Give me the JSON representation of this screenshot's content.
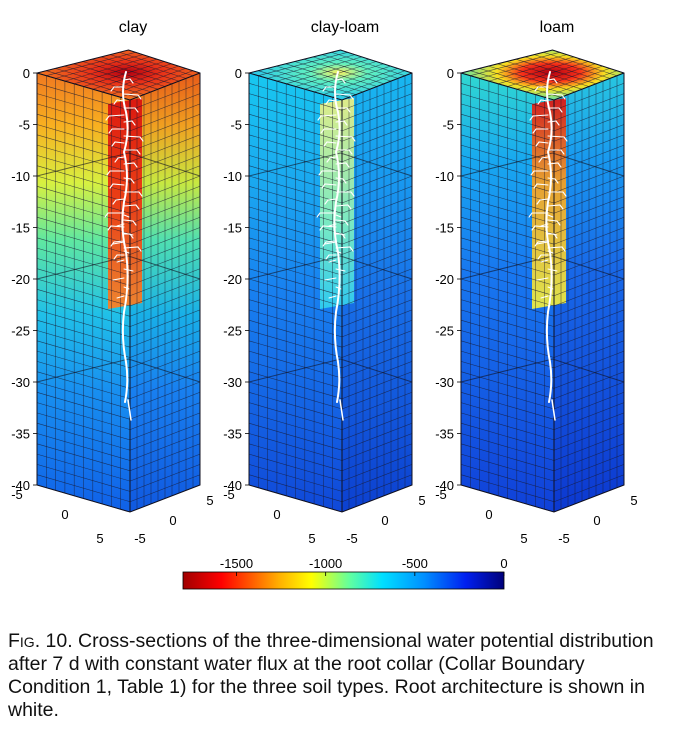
{
  "chart_data": {
    "type": "heatmap",
    "description_panels": [
      "clay",
      "clay-loam",
      "loam"
    ],
    "panels": [
      {
        "title": "clay"
      },
      {
        "title": "clay-loam"
      },
      {
        "title": "loam"
      }
    ],
    "z_axis": {
      "ticks": [
        "0",
        "-5",
        "-10",
        "-15",
        "-20",
        "-25",
        "-30",
        "-35",
        "-40"
      ],
      "range": [
        -40,
        0
      ]
    },
    "x_axis": {
      "ticks": [
        "-5",
        "0",
        "5"
      ]
    },
    "y_axis": {
      "ticks": [
        "5",
        "0",
        "-5"
      ]
    },
    "colorbar": {
      "range": [
        -1800,
        0
      ],
      "ticks": [
        {
          "value": -1500,
          "label": "-1500"
        },
        {
          "value": -1000,
          "label": "-1000"
        },
        {
          "value": -500,
          "label": "-500"
        },
        {
          "value": 0,
          "label": "0"
        }
      ],
      "colormap": "jet"
    },
    "grid": true
  },
  "caption": {
    "label": "Fig. 10.",
    "text": " Cross-sections of the three-dimensional water potential distribution after 7 d with constant water flux at the root collar (Collar Boundary Condition 1, Table 1) for the three soil types. Root architecture is shown in white."
  }
}
